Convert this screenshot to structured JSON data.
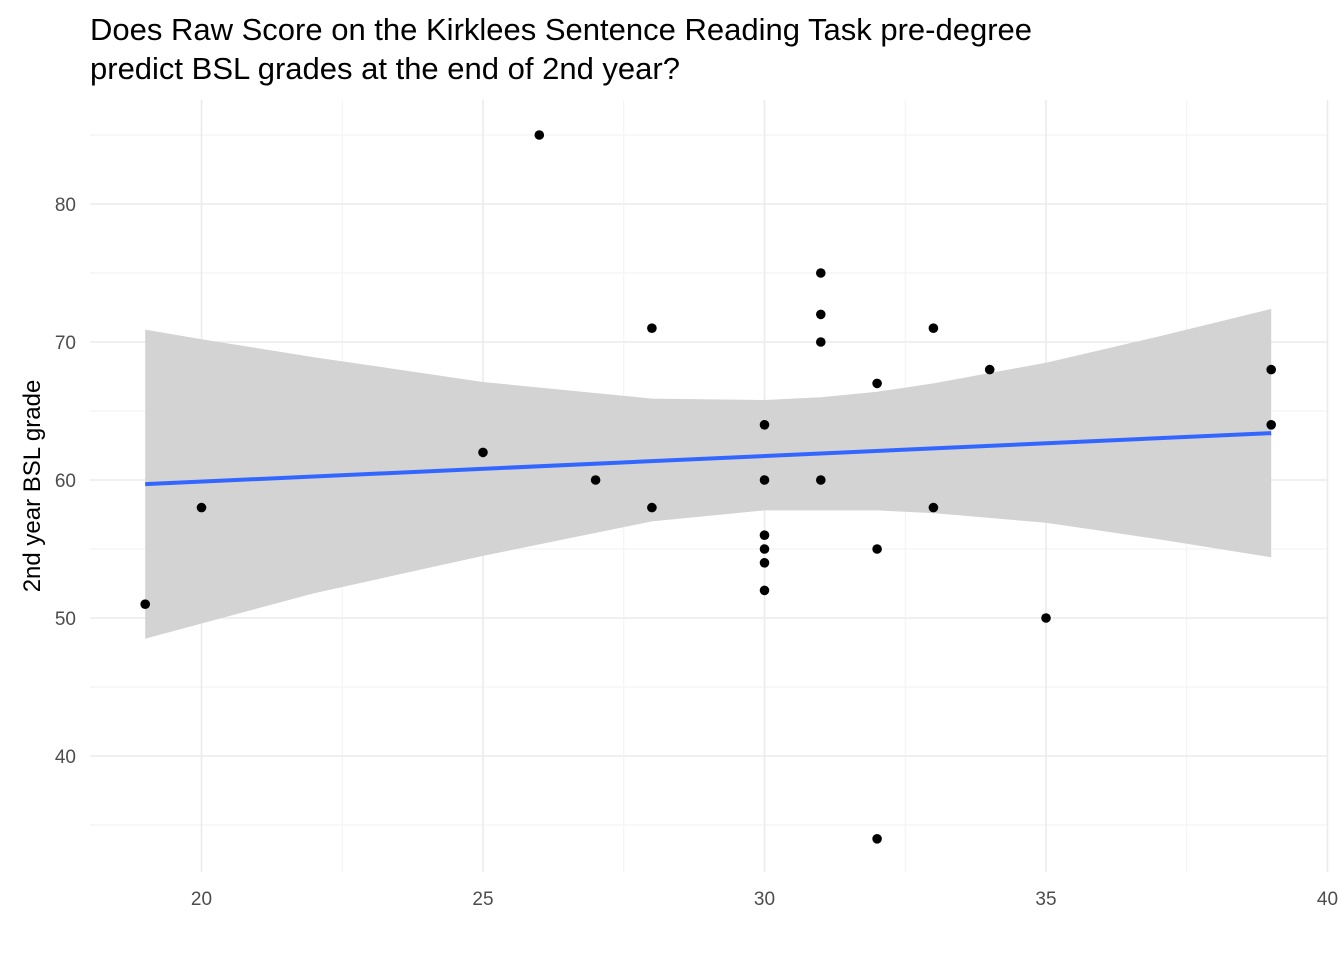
{
  "chart_data": {
    "type": "scatter",
    "title": "Does Raw Score on the Kirklees Sentence Reading Task pre-degree predict BSL grades at the end of 2nd year?",
    "title_lines": [
      "Does Raw Score on the Kirklees Sentence Reading Task pre-degree",
      "predict BSL grades at the end of 2nd year?"
    ],
    "xlabel": "",
    "ylabel": "2nd year BSL grade",
    "xlim": [
      18,
      40
    ],
    "ylim": [
      32,
      88
    ],
    "x_ticks": [
      20,
      25,
      30,
      35,
      40
    ],
    "y_ticks": [
      40,
      50,
      60,
      70,
      80
    ],
    "grid": true,
    "legend": "none",
    "points": [
      {
        "x": 19,
        "y": 51
      },
      {
        "x": 20,
        "y": 58
      },
      {
        "x": 25,
        "y": 62
      },
      {
        "x": 26,
        "y": 85
      },
      {
        "x": 27,
        "y": 60
      },
      {
        "x": 28,
        "y": 71
      },
      {
        "x": 28,
        "y": 58
      },
      {
        "x": 30,
        "y": 64
      },
      {
        "x": 30,
        "y": 60
      },
      {
        "x": 30,
        "y": 56
      },
      {
        "x": 30,
        "y": 55
      },
      {
        "x": 30,
        "y": 54
      },
      {
        "x": 30,
        "y": 52
      },
      {
        "x": 31,
        "y": 75
      },
      {
        "x": 31,
        "y": 72
      },
      {
        "x": 31,
        "y": 70
      },
      {
        "x": 31,
        "y": 60
      },
      {
        "x": 32,
        "y": 67
      },
      {
        "x": 32,
        "y": 55
      },
      {
        "x": 32,
        "y": 34
      },
      {
        "x": 33,
        "y": 71
      },
      {
        "x": 33,
        "y": 58
      },
      {
        "x": 34,
        "y": 68
      },
      {
        "x": 35,
        "y": 50
      },
      {
        "x": 39,
        "y": 68
      },
      {
        "x": 39,
        "y": 64
      }
    ],
    "fit_line": {
      "x": [
        19,
        39
      ],
      "y": [
        59.7,
        63.4
      ]
    },
    "confidence_band": {
      "x": [
        19,
        20,
        22,
        25,
        28,
        30,
        31,
        32,
        33,
        35,
        37,
        39
      ],
      "upper": [
        70.9,
        70.2,
        68.9,
        67.1,
        65.9,
        65.8,
        66.0,
        66.4,
        67.0,
        68.5,
        70.4,
        72.4
      ],
      "lower": [
        48.5,
        49.6,
        51.8,
        54.5,
        57.0,
        57.8,
        57.8,
        57.8,
        57.6,
        56.9,
        55.7,
        54.4
      ]
    },
    "colors": {
      "points": "#000000",
      "fit_line": "#3366ff",
      "band": "#d3d3d3",
      "grid_major": "#ebebeb",
      "grid_minor": "#f2f2f2",
      "tick_text": "#4d4d4d"
    }
  }
}
